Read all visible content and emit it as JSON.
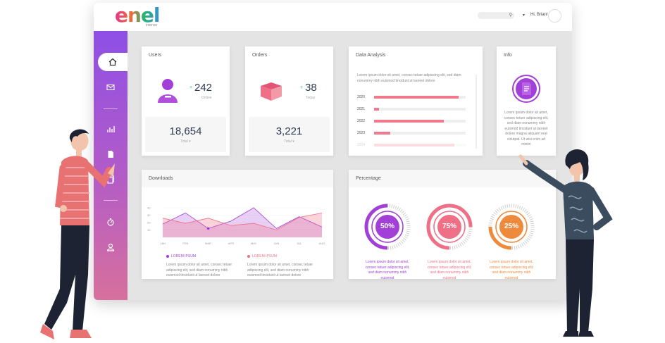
{
  "header": {
    "logo": "enel",
    "logo_sub": "intense",
    "greeting": "Hi, Brian!",
    "caret": "▾"
  },
  "sidebar": {
    "items": [
      {
        "icon": "home-icon",
        "active": true
      },
      {
        "icon": "mail-icon",
        "active": false
      },
      {
        "icon": "bar-chart-icon",
        "active": false
      },
      {
        "icon": "document-icon",
        "active": false
      },
      {
        "icon": "copy-icon",
        "active": false
      },
      {
        "icon": "timer-icon",
        "active": false
      },
      {
        "icon": "user-icon",
        "active": false
      }
    ]
  },
  "cards": {
    "users": {
      "title": "Users",
      "value": "242",
      "value_caption": "Online",
      "plus": "+",
      "total": "18,654",
      "total_caption": "Total ▾"
    },
    "orders": {
      "title": "Orders",
      "value": "38",
      "value_caption": "Today",
      "plus": "+",
      "total": "3,221",
      "total_caption": "Total ▾"
    },
    "data_analysis": {
      "title": "Data Analysis",
      "description": "Lorem ipsum dolor sit amet, consec tetuer adipiscing elit, sed diam nonummy nibh euismod tincidunt ut laoreet dolore",
      "bars": [
        {
          "year": "2020",
          "value": 0.92
        },
        {
          "year": "2021",
          "value": 0.05
        },
        {
          "year": "2022",
          "value": 0.76
        },
        {
          "year": "2023",
          "value": 0.18
        },
        {
          "year": "2024",
          "value": 0.88
        }
      ]
    },
    "info": {
      "title": "Info",
      "text": "Lorem ipsum dolor sit amet, consec tetuer adipiscing elit, sed diam nonummy nibh euismod tincidunt ut laoreet dolore magna aliquam erat volutpat. Ut wisi enim ad minim"
    },
    "downloads": {
      "title": "Downloads",
      "legend": [
        {
          "label": "LOREM IPSUM",
          "color": "#a23fd6",
          "text": "Lorem ipsum dolor sit amet, consec tetuer adipiscing elit, sed diam nonummy nibh euismod tincidunt ut laoreet dolore"
        },
        {
          "label": "LOREM IPSUM",
          "color": "#ef6f86",
          "text": "Lorem ipsum dolor sit amet, consec tetuer adipiscing elit, sed diam nonummy nibh euismod tincidunt ut laoreet dolore"
        }
      ]
    },
    "percentage": {
      "title": "Percentage",
      "rings": [
        {
          "label": "50%",
          "value": 0.5,
          "color": "#a23fd6",
          "text": "Lorem ipsum dolor sit amet, consec tetuer adipiscing elit, sed diam nonummy nibh euismod"
        },
        {
          "label": "75%",
          "value": 0.75,
          "color": "#ef6f86",
          "text": "Lorem ipsum dolor sit amet, consec tetuer adipiscing elit, sed diam nonummy nibh euismod"
        },
        {
          "label": "25%",
          "value": 0.25,
          "color": "#ee8a3c",
          "text": "Lorem ipsum dolor sit amet, consec tetuer adipiscing elit, sed diam nonummy nibh euismod"
        }
      ]
    }
  },
  "chart_data": {
    "type": "area",
    "categories": [
      "JAN",
      "FEB",
      "MAR",
      "APR",
      "MAY",
      "JUN",
      "JUL",
      "AUG"
    ],
    "y_ticks": [
      "40",
      "30",
      "20",
      "10"
    ],
    "ylim": [
      0,
      40
    ],
    "series": [
      {
        "values": [
          18,
          33,
          12,
          22,
          40,
          12,
          28,
          14
        ]
      },
      {
        "values": [
          26,
          19,
          26,
          16,
          19,
          10,
          27,
          33
        ]
      }
    ]
  }
}
